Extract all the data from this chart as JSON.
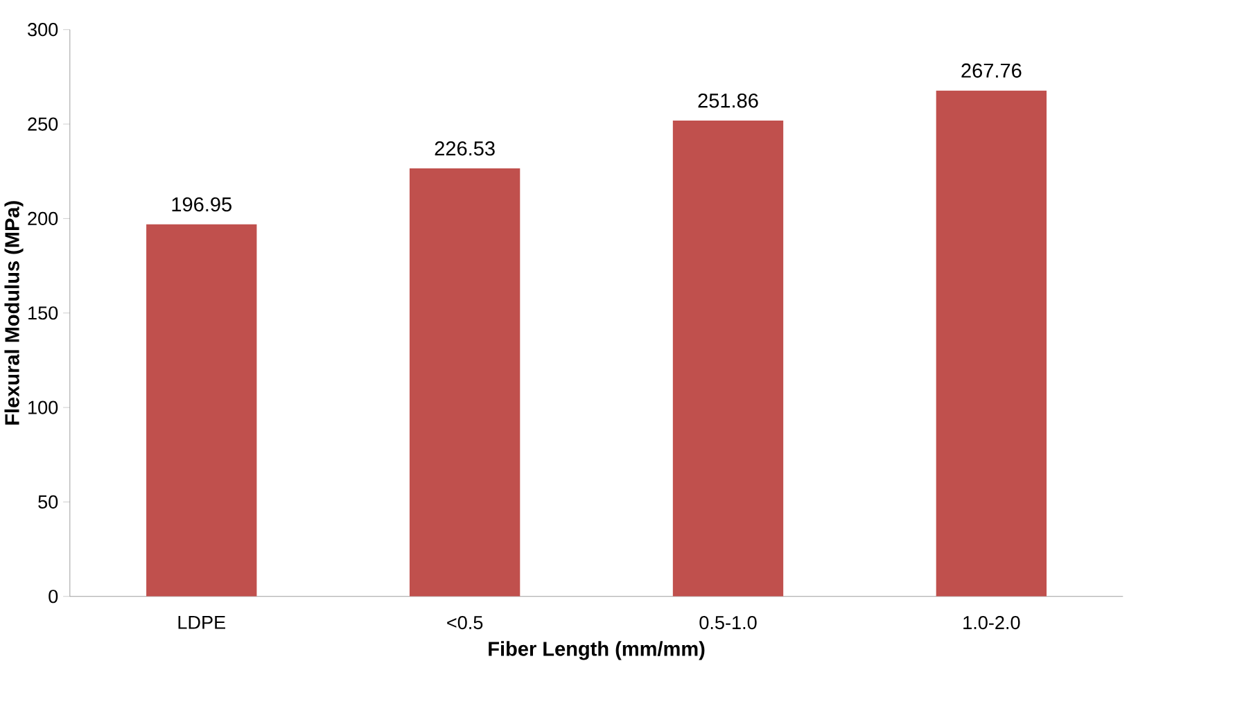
{
  "chart_data": {
    "type": "bar",
    "xlabel": "Fiber Length (mm/mm)",
    "ylabel": "Flexural Modulus (MPa)",
    "categories": [
      "LDPE",
      "<0.5",
      "0.5-1.0",
      "1.0-2.0"
    ],
    "values": [
      196.95,
      226.53,
      251.86,
      267.76
    ],
    "color": "#c0504d",
    "ylim": [
      0,
      300
    ],
    "yticks": [
      0,
      50,
      100,
      150,
      200,
      250,
      300
    ],
    "data_labels": true
  }
}
